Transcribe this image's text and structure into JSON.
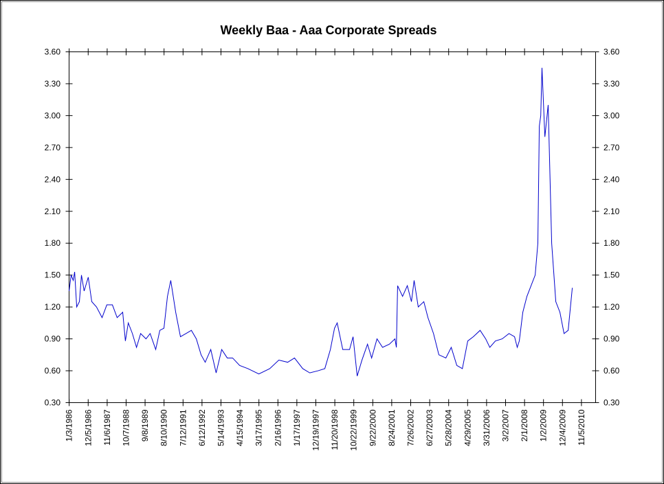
{
  "chart_data": {
    "type": "line",
    "title": "Weekly Baa - Aaa Corporate Spreads",
    "series": [
      {
        "name": "Baa - Aaa",
        "color": "#0000cc",
        "x": [
          1986.0,
          1986.1,
          1986.2,
          1986.27,
          1986.37,
          1986.5,
          1986.6,
          1986.73,
          1986.93,
          1987.1,
          1987.33,
          1987.6,
          1987.83,
          1988.1,
          1988.33,
          1988.6,
          1988.73,
          1988.87,
          1989.07,
          1989.27,
          1989.47,
          1989.73,
          1989.93,
          1990.2,
          1990.4,
          1990.6,
          1990.77,
          1990.93,
          1991.17,
          1991.4,
          1991.67,
          1991.93,
          1992.17,
          1992.4,
          1992.6,
          1992.87,
          1993.13,
          1993.4,
          1993.67,
          1993.93,
          1994.27,
          1994.67,
          1995.2,
          1995.73,
          1996.17,
          1996.6,
          1996.93,
          1997.33,
          1997.67,
          1998.07,
          1998.4,
          1998.67,
          1998.87,
          1999.0,
          1999.27,
          1999.6,
          1999.77,
          1999.97,
          2000.2,
          2000.47,
          2000.67,
          2000.93,
          2001.2,
          2001.53,
          2001.8,
          2001.87,
          2001.93,
          2002.17,
          2002.4,
          2002.6,
          2002.73,
          2002.93,
          2003.2,
          2003.4,
          2003.67,
          2003.93,
          2004.27,
          2004.53,
          2004.8,
          2005.07,
          2005.33,
          2005.6,
          2005.93,
          2006.2,
          2006.4,
          2006.67,
          2007.0,
          2007.33,
          2007.6,
          2007.73,
          2007.83,
          2008.0,
          2008.2,
          2008.4,
          2008.6,
          2008.73,
          2008.8,
          2008.87,
          2008.93,
          2009.07,
          2009.23,
          2009.4,
          2009.6,
          2009.8,
          2010.0,
          2010.2,
          2010.4
        ],
        "values": [
          1.35,
          1.5,
          1.45,
          1.53,
          1.2,
          1.25,
          1.5,
          1.35,
          1.48,
          1.25,
          1.2,
          1.1,
          1.22,
          1.22,
          1.1,
          1.15,
          0.88,
          1.05,
          0.95,
          0.82,
          0.95,
          0.9,
          0.95,
          0.8,
          0.98,
          1.0,
          1.3,
          1.45,
          1.15,
          0.92,
          0.95,
          0.98,
          0.9,
          0.75,
          0.68,
          0.8,
          0.58,
          0.8,
          0.72,
          0.72,
          0.65,
          0.62,
          0.57,
          0.62,
          0.7,
          0.68,
          0.72,
          0.62,
          0.58,
          0.6,
          0.62,
          0.8,
          1.0,
          1.05,
          0.8,
          0.8,
          0.92,
          0.55,
          0.7,
          0.85,
          0.72,
          0.9,
          0.82,
          0.85,
          0.9,
          0.82,
          1.4,
          1.3,
          1.4,
          1.25,
          1.45,
          1.2,
          1.25,
          1.1,
          0.95,
          0.75,
          0.72,
          0.82,
          0.65,
          0.62,
          0.88,
          0.92,
          0.98,
          0.9,
          0.82,
          0.88,
          0.9,
          0.95,
          0.92,
          0.82,
          0.88,
          1.15,
          1.3,
          1.4,
          1.5,
          1.8,
          2.9,
          3.0,
          3.45,
          2.8,
          3.1,
          1.8,
          1.25,
          1.15,
          0.95,
          0.98,
          1.38
        ]
      }
    ],
    "xlim": [
      1986.0,
      2011.53
    ],
    "xticks": [
      {
        "value": 1986.005,
        "label": "1/3/1986"
      },
      {
        "value": 1986.926,
        "label": "12/5/1986"
      },
      {
        "value": 1987.847,
        "label": "11/6/1987"
      },
      {
        "value": 1988.765,
        "label": "10/7/1988"
      },
      {
        "value": 1989.685,
        "label": "9/8/1989"
      },
      {
        "value": 1990.605,
        "label": "8/10/1990"
      },
      {
        "value": 1991.526,
        "label": "7/12/1991"
      },
      {
        "value": 1992.445,
        "label": "6/12/1992"
      },
      {
        "value": 1993.364,
        "label": "5/14/1993"
      },
      {
        "value": 1994.285,
        "label": "4/15/1994"
      },
      {
        "value": 1995.205,
        "label": "3/17/1995"
      },
      {
        "value": 1996.126,
        "label": "2/16/1996"
      },
      {
        "value": 1997.044,
        "label": "1/17/1997"
      },
      {
        "value": 1997.964,
        "label": "12/19/1997"
      },
      {
        "value": 1998.885,
        "label": "11/20/1998"
      },
      {
        "value": 1999.805,
        "label": "10/22/1999"
      },
      {
        "value": 2000.726,
        "label": "9/22/2000"
      },
      {
        "value": 2001.644,
        "label": "8/24/2001"
      },
      {
        "value": 2002.564,
        "label": "7/26/2002"
      },
      {
        "value": 2003.485,
        "label": "6/27/2003"
      },
      {
        "value": 2004.405,
        "label": "5/28/2004"
      },
      {
        "value": 2005.323,
        "label": "4/29/2005"
      },
      {
        "value": 2006.244,
        "label": "3/31/2006"
      },
      {
        "value": 2007.164,
        "label": "3/2/2007"
      },
      {
        "value": 2008.085,
        "label": "2/1/2008"
      },
      {
        "value": 2009.003,
        "label": "1/2/2009"
      },
      {
        "value": 2009.923,
        "label": "12/4/2009"
      },
      {
        "value": 2010.844,
        "label": "11/5/2010"
      }
    ],
    "ylim": [
      0.3,
      3.6
    ],
    "yticks": [
      {
        "value": 0.3,
        "label": "0.30"
      },
      {
        "value": 0.6,
        "label": "0.60"
      },
      {
        "value": 0.9,
        "label": "0.90"
      },
      {
        "value": 1.2,
        "label": "1.20"
      },
      {
        "value": 1.5,
        "label": "1.50"
      },
      {
        "value": 1.8,
        "label": "1.80"
      },
      {
        "value": 2.1,
        "label": "2.10"
      },
      {
        "value": 2.4,
        "label": "2.40"
      },
      {
        "value": 2.7,
        "label": "2.70"
      },
      {
        "value": 3.0,
        "label": "3.00"
      },
      {
        "value": 3.3,
        "label": "3.30"
      },
      {
        "value": 3.6,
        "label": "3.60"
      }
    ],
    "y2lim": [
      0.3,
      3.6
    ],
    "y2ticks": [
      {
        "value": 0.3,
        "label": "0.30"
      },
      {
        "value": 0.6,
        "label": "0.60"
      },
      {
        "value": 0.9,
        "label": "0.90"
      },
      {
        "value": 1.2,
        "label": "1.20"
      },
      {
        "value": 1.5,
        "label": "1.50"
      },
      {
        "value": 1.8,
        "label": "1.80"
      },
      {
        "value": 2.1,
        "label": "2.10"
      },
      {
        "value": 2.4,
        "label": "2.40"
      },
      {
        "value": 2.7,
        "label": "2.70"
      },
      {
        "value": 3.0,
        "label": "3.00"
      },
      {
        "value": 3.3,
        "label": "3.30"
      },
      {
        "value": 3.6,
        "label": "3.60"
      }
    ],
    "grid": false
  }
}
